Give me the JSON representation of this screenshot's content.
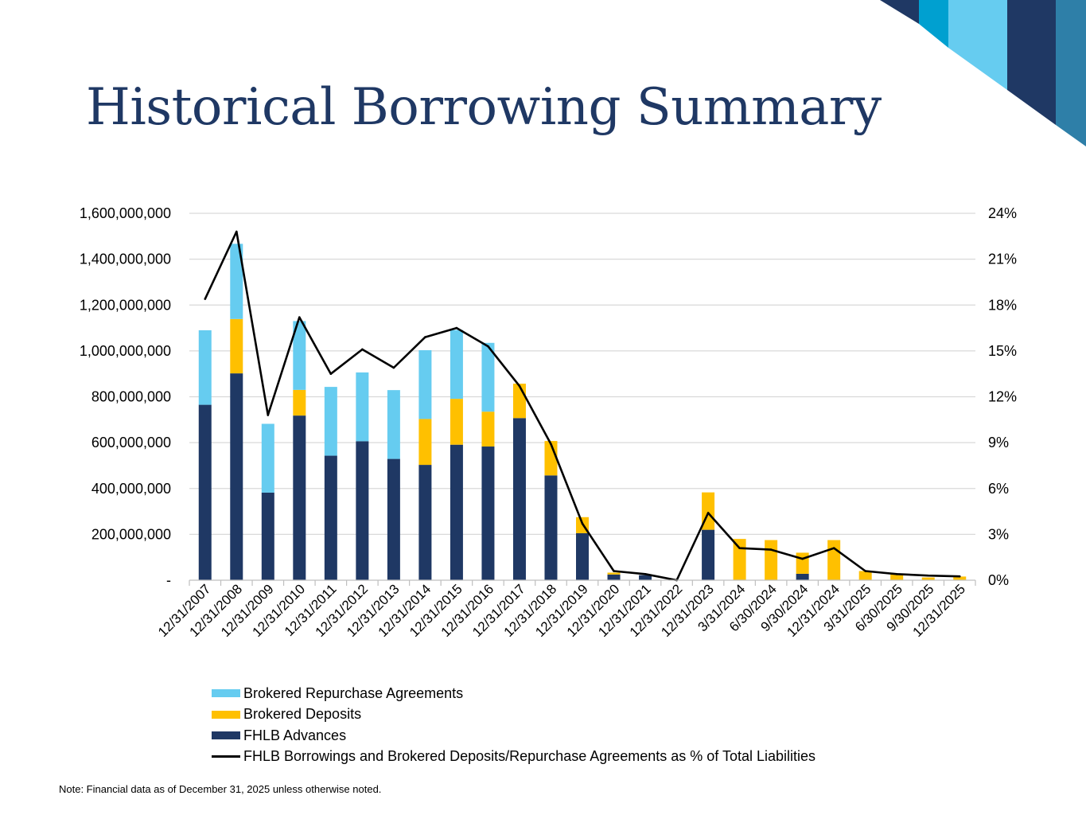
{
  "title": "Historical Borrowing Summary",
  "footnote": "Note: Financial data as of December 31, 2025 unless otherwise noted.",
  "colors": {
    "fhlb": "#1f3864",
    "deposits": "#ffc000",
    "repurchase": "#66ccf0",
    "line": "#000000",
    "deco_dark": "#1f3864",
    "deco_mid": "#00a0d0",
    "deco_light": "#66ccf0",
    "deco_steel": "#2e7fa8"
  },
  "chart_data": {
    "type": "bar",
    "stacked": true,
    "categories": [
      "12/31/2007",
      "12/31/2008",
      "12/31/2009",
      "12/31/2010",
      "12/31/2011",
      "12/31/2012",
      "12/31/2013",
      "12/31/2014",
      "12/31/2015",
      "12/31/2016",
      "12/31/2017",
      "12/31/2018",
      "12/31/2019",
      "12/31/2020",
      "12/31/2021",
      "12/31/2022",
      "12/31/2023",
      "3/31/2024",
      "6/30/2024",
      "9/30/2024",
      "12/31/2024",
      "3/31/2025",
      "6/30/2025",
      "9/30/2025",
      "12/31/2025"
    ],
    "series": [
      {
        "name": "FHLB Advances",
        "color_key": "fhlb",
        "values": [
          765000000,
          902000000,
          382000000,
          718000000,
          543000000,
          606000000,
          529000000,
          503000000,
          591000000,
          583000000,
          707000000,
          457000000,
          205000000,
          25000000,
          22000000,
          0,
          220000000,
          0,
          0,
          28000000,
          0,
          0,
          0,
          0,
          0
        ]
      },
      {
        "name": "Brokered Deposits",
        "color_key": "deposits",
        "values": [
          0,
          237000000,
          0,
          112000000,
          0,
          0,
          0,
          200000000,
          200000000,
          152000000,
          150000000,
          150000000,
          70000000,
          8000000,
          0,
          0,
          163000000,
          180000000,
          175000000,
          92000000,
          175000000,
          40000000,
          25000000,
          12000000,
          16000000
        ]
      },
      {
        "name": "Brokered Repurchase Agreements",
        "color_key": "repurchase",
        "values": [
          325000000,
          328000000,
          300000000,
          300000000,
          300000000,
          300000000,
          300000000,
          300000000,
          300000000,
          300000000,
          0,
          0,
          0,
          0,
          0,
          0,
          0,
          0,
          0,
          0,
          0,
          0,
          0,
          0,
          0
        ]
      }
    ],
    "line": {
      "name": "FHLB Borrowings and Brokered Deposits/Repurchase Agreements as % of Total Liabilities",
      "values": [
        18.4,
        22.8,
        10.8,
        17.2,
        13.5,
        15.1,
        13.9,
        15.9,
        16.5,
        15.3,
        12.7,
        8.9,
        3.7,
        0.6,
        0.4,
        0.0,
        4.4,
        2.1,
        2.0,
        1.4,
        2.1,
        0.6,
        0.4,
        0.3,
        0.25
      ]
    },
    "y_left": {
      "min": 0,
      "max": 1600000000,
      "step": 200000000,
      "tick_labels": [
        "-",
        "200,000,000",
        "400,000,000",
        "600,000,000",
        "800,000,000",
        "1,000,000,000",
        "1,200,000,000",
        "1,400,000,000",
        "1,600,000,000"
      ]
    },
    "y_right": {
      "min": 0,
      "max": 24,
      "step": 3,
      "tick_labels": [
        "0%",
        "3%",
        "6%",
        "9%",
        "12%",
        "15%",
        "18%",
        "21%",
        "24%"
      ]
    },
    "legend": [
      "Brokered Repurchase Agreements",
      "Brokered Deposits",
      "FHLB Advances",
      "FHLB Borrowings and Brokered Deposits/Repurchase Agreements as % of Total Liabilities"
    ],
    "legend_position": "bottom-left",
    "grid": true
  }
}
